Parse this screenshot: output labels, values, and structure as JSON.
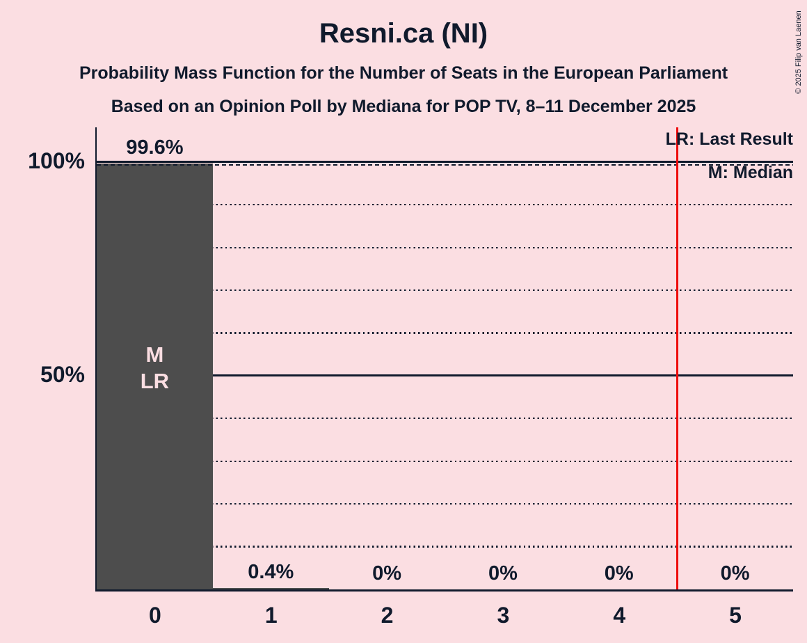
{
  "title": "Resni.ca (NI)",
  "subtitle1": "Probability Mass Function for the Number of Seats in the European Parliament",
  "subtitle2": "Based on an Opinion Poll by Mediana for POP TV, 8–11 December 2025",
  "copyright": "© 2025 Filip van Laenen",
  "legend": {
    "lr": "LR: Last Result",
    "m": "M: Median"
  },
  "colors": {
    "background": "#fbdee2",
    "bar": "#4d4d4d",
    "text": "#101a2c",
    "threshold_line": "#ee0c0c"
  },
  "chart_data": {
    "type": "bar",
    "title": "Resni.ca (NI) — Probability Mass Function for the Number of Seats in the European Parliament",
    "xlabel": "",
    "ylabel": "",
    "categories": [
      "0",
      "1",
      "2",
      "3",
      "4",
      "5"
    ],
    "values": [
      99.6,
      0.4,
      0,
      0,
      0,
      0
    ],
    "value_labels": [
      "99.6%",
      "0.4%",
      "0%",
      "0%",
      "0%",
      "0%"
    ],
    "bar_annotations": [
      [
        "M",
        "LR"
      ],
      [],
      [],
      [],
      [],
      []
    ],
    "median_seats": 0,
    "last_result_seats": 0,
    "threshold_line_x": 4.5,
    "dashed_line_pct": 99.6,
    "ylim": [
      0,
      108
    ],
    "y_axis": {
      "ticks": [
        {
          "value": 100,
          "label": "100%"
        },
        {
          "value": 50,
          "label": "50%"
        }
      ]
    },
    "gridlines": {
      "solid": [
        50,
        100
      ],
      "dotted": [
        10,
        20,
        30,
        40,
        60,
        70,
        80,
        90
      ]
    },
    "legend_position": "top-right",
    "grid": true
  }
}
